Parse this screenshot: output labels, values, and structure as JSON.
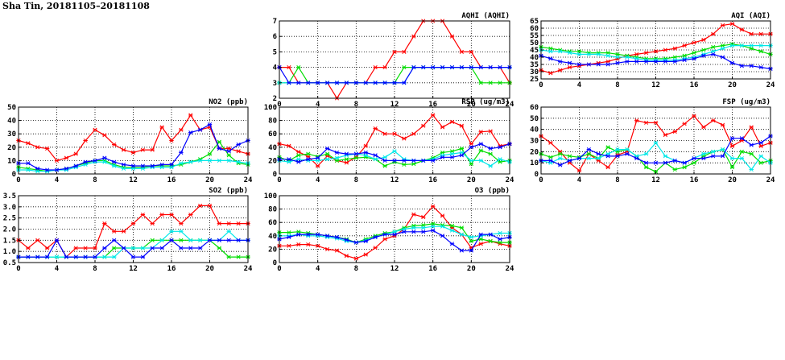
{
  "header": {
    "title": "Sha Tin, 20181105–20181108"
  },
  "colors": {
    "red": "#ff0000",
    "green": "#00dd00",
    "cyan": "#00e8e8",
    "blue": "#0000ff",
    "grid": "#000000"
  },
  "chart_data": [
    {
      "id": "aqhi",
      "type": "line",
      "title": "AQHI (AQHI)",
      "x": [
        0,
        1,
        2,
        3,
        4,
        5,
        6,
        7,
        8,
        9,
        10,
        11,
        12,
        13,
        14,
        15,
        16,
        17,
        18,
        19,
        20,
        21,
        22,
        23,
        24
      ],
      "xlim": [
        0,
        24
      ],
      "xticks": [
        0,
        4,
        8,
        12,
        16,
        20,
        24
      ],
      "ylim": [
        2,
        7
      ],
      "yticks": [
        2,
        3,
        4,
        5,
        6,
        7
      ],
      "series": [
        {
          "color": "red",
          "values": [
            4,
            4,
            3,
            3,
            3,
            3,
            2,
            3,
            3,
            3,
            4,
            4,
            5,
            5,
            6,
            7,
            7,
            7,
            6,
            5,
            5,
            4,
            4,
            4,
            3
          ]
        },
        {
          "color": "green",
          "values": [
            3,
            3,
            4,
            3,
            3,
            3,
            3,
            3,
            3,
            3,
            3,
            3,
            3,
            4,
            4,
            4,
            4,
            4,
            4,
            4,
            4,
            3,
            3,
            3,
            3
          ]
        },
        {
          "color": "cyan",
          "values": [
            3,
            3,
            3,
            3,
            3,
            3,
            3,
            3,
            3,
            3,
            3,
            3,
            3,
            3,
            4,
            4,
            4,
            4,
            4,
            4,
            4,
            4,
            4,
            4,
            4
          ]
        },
        {
          "color": "blue",
          "values": [
            4,
            3,
            3,
            3,
            3,
            3,
            3,
            3,
            3,
            3,
            3,
            3,
            3,
            3,
            4,
            4,
            4,
            4,
            4,
            4,
            4,
            4,
            4,
            4,
            4
          ]
        }
      ]
    },
    {
      "id": "aqi",
      "type": "line",
      "title": "AQI (AQI)",
      "x": [
        0,
        1,
        2,
        3,
        4,
        5,
        6,
        7,
        8,
        9,
        10,
        11,
        12,
        13,
        14,
        15,
        16,
        17,
        18,
        19,
        20,
        21,
        22,
        23,
        24
      ],
      "xlim": [
        0,
        24
      ],
      "xticks": [
        0,
        4,
        8,
        12,
        16,
        20,
        24
      ],
      "ylim": [
        25,
        65
      ],
      "yticks": [
        25,
        30,
        35,
        40,
        45,
        50,
        55,
        60,
        65
      ],
      "series": [
        {
          "color": "red",
          "values": [
            31,
            29,
            31,
            33,
            34,
            35,
            36,
            37,
            39,
            41,
            42,
            43,
            44,
            45,
            46,
            48,
            50,
            52,
            56,
            62,
            63,
            59,
            56,
            56,
            56
          ]
        },
        {
          "color": "green",
          "values": [
            47,
            46,
            45,
            44,
            44,
            43,
            43,
            43,
            42,
            41,
            40,
            39,
            39,
            39,
            40,
            41,
            43,
            45,
            47,
            48,
            49,
            48,
            46,
            44,
            42
          ]
        },
        {
          "color": "cyan",
          "values": [
            45,
            44,
            44,
            43,
            42,
            42,
            42,
            41,
            40,
            40,
            39,
            38,
            38,
            38,
            38,
            39,
            40,
            42,
            44,
            46,
            48,
            48,
            48,
            48,
            48
          ]
        },
        {
          "color": "blue",
          "values": [
            41,
            39,
            37,
            36,
            35,
            35,
            35,
            35,
            36,
            37,
            37,
            37,
            37,
            37,
            37,
            38,
            39,
            41,
            42,
            40,
            36,
            34,
            34,
            33,
            32
          ]
        }
      ]
    },
    {
      "id": "no2",
      "type": "line",
      "title": "NO2 (ppb)",
      "x": [
        0,
        1,
        2,
        3,
        4,
        5,
        6,
        7,
        8,
        9,
        10,
        11,
        12,
        13,
        14,
        15,
        16,
        17,
        18,
        19,
        20,
        21,
        22,
        23,
        24
      ],
      "xlim": [
        0,
        24
      ],
      "xticks": [
        0,
        4,
        8,
        12,
        16,
        20,
        24
      ],
      "ylim": [
        0,
        50
      ],
      "yticks": [
        0,
        10,
        20,
        30,
        40,
        50
      ],
      "series": [
        {
          "color": "red",
          "values": [
            25,
            23,
            20,
            19,
            10,
            12,
            15,
            25,
            33,
            29,
            22,
            18,
            16,
            18,
            18,
            35,
            25,
            33,
            44,
            33,
            35,
            19,
            19,
            17,
            15
          ]
        },
        {
          "color": "green",
          "values": [
            5,
            4,
            3,
            2,
            3,
            4,
            6,
            8,
            10,
            10,
            7,
            5,
            5,
            5,
            6,
            6,
            6,
            7,
            9,
            11,
            15,
            24,
            14,
            8,
            7
          ]
        },
        {
          "color": "cyan",
          "values": [
            3,
            3,
            2,
            2,
            3,
            3,
            5,
            7,
            9,
            9,
            6,
            4,
            4,
            4,
            5,
            5,
            5,
            8,
            9,
            10,
            10,
            10,
            10,
            9,
            8
          ]
        },
        {
          "color": "blue",
          "values": [
            8,
            8,
            4,
            3,
            3,
            4,
            6,
            9,
            10,
            12,
            9,
            7,
            6,
            6,
            6,
            7,
            7,
            16,
            31,
            33,
            37,
            19,
            17,
            22,
            25
          ]
        }
      ]
    },
    {
      "id": "rsp",
      "type": "line",
      "title": "RSP (ug/m3)",
      "x": [
        0,
        1,
        2,
        3,
        4,
        5,
        6,
        7,
        8,
        9,
        10,
        11,
        12,
        13,
        14,
        15,
        16,
        17,
        18,
        19,
        20,
        21,
        22,
        23,
        24
      ],
      "xlim": [
        0,
        24
      ],
      "xticks": [
        0,
        4,
        8,
        12,
        16,
        20,
        24
      ],
      "ylim": [
        0,
        100
      ],
      "yticks": [
        0,
        20,
        40,
        60,
        80,
        100
      ],
      "series": [
        {
          "color": "red",
          "values": [
            45,
            42,
            33,
            26,
            12,
            27,
            20,
            17,
            25,
            42,
            68,
            60,
            60,
            53,
            60,
            72,
            88,
            70,
            78,
            72,
            45,
            63,
            64,
            42,
            45
          ]
        },
        {
          "color": "green",
          "values": [
            25,
            20,
            28,
            30,
            26,
            30,
            20,
            22,
            24,
            25,
            22,
            12,
            18,
            14,
            15,
            20,
            24,
            32,
            34,
            38,
            15,
            35,
            30,
            18,
            20
          ]
        },
        {
          "color": "cyan",
          "values": [
            20,
            18,
            22,
            20,
            20,
            22,
            24,
            28,
            30,
            28,
            22,
            25,
            34,
            22,
            20,
            20,
            22,
            28,
            30,
            32,
            20,
            20,
            12,
            22,
            18
          ]
        },
        {
          "color": "blue",
          "values": [
            22,
            22,
            18,
            22,
            24,
            38,
            32,
            30,
            30,
            32,
            28,
            20,
            20,
            20,
            20,
            20,
            20,
            25,
            25,
            28,
            40,
            45,
            38,
            40,
            45
          ]
        }
      ]
    },
    {
      "id": "fsp",
      "type": "line",
      "title": "FSP (ug/m3)",
      "x": [
        0,
        1,
        2,
        3,
        4,
        5,
        6,
        7,
        8,
        9,
        10,
        11,
        12,
        13,
        14,
        15,
        16,
        17,
        18,
        19,
        20,
        21,
        22,
        23,
        24
      ],
      "xlim": [
        0,
        24
      ],
      "xticks": [
        0,
        4,
        8,
        12,
        16,
        20,
        24
      ],
      "ylim": [
        0,
        60
      ],
      "yticks": [
        0,
        10,
        20,
        30,
        40,
        50,
        60
      ],
      "series": [
        {
          "color": "red",
          "values": [
            34,
            28,
            20,
            10,
            3,
            18,
            12,
            6,
            17,
            20,
            48,
            46,
            46,
            35,
            38,
            45,
            52,
            42,
            48,
            44,
            25,
            30,
            42,
            25,
            28
          ]
        },
        {
          "color": "green",
          "values": [
            18,
            15,
            18,
            16,
            15,
            18,
            14,
            24,
            20,
            22,
            16,
            6,
            2,
            10,
            4,
            6,
            10,
            16,
            20,
            22,
            6,
            20,
            18,
            10,
            12
          ]
        },
        {
          "color": "cyan",
          "values": [
            12,
            10,
            14,
            12,
            14,
            14,
            14,
            18,
            22,
            22,
            16,
            18,
            28,
            16,
            12,
            10,
            14,
            18,
            20,
            22,
            14,
            14,
            4,
            16,
            10
          ]
        },
        {
          "color": "blue",
          "values": [
            12,
            12,
            8,
            12,
            14,
            22,
            18,
            16,
            16,
            18,
            14,
            10,
            10,
            10,
            12,
            10,
            14,
            14,
            16,
            16,
            32,
            32,
            26,
            28,
            34
          ]
        }
      ]
    },
    {
      "id": "so2",
      "type": "line",
      "title": "SO2 (ppb)",
      "x": [
        0,
        1,
        2,
        3,
        4,
        5,
        6,
        7,
        8,
        9,
        10,
        11,
        12,
        13,
        14,
        15,
        16,
        17,
        18,
        19,
        20,
        21,
        22,
        23,
        24
      ],
      "xlim": [
        0,
        24
      ],
      "xticks": [
        0,
        4,
        8,
        12,
        16,
        20,
        24
      ],
      "ylim": [
        0.5,
        3.5
      ],
      "yticks": [
        0.5,
        1.0,
        1.5,
        2.0,
        2.5,
        3.0,
        3.5
      ],
      "series": [
        {
          "color": "red",
          "values": [
            1.5,
            1.15,
            1.5,
            1.15,
            1.5,
            0.75,
            1.15,
            1.15,
            1.15,
            2.25,
            1.9,
            1.9,
            2.25,
            2.65,
            2.25,
            2.65,
            2.65,
            2.25,
            2.65,
            3.05,
            3.05,
            2.25,
            2.25,
            2.25,
            2.25
          ]
        },
        {
          "color": "green",
          "values": [
            0.75,
            0.75,
            0.75,
            0.75,
            0.75,
            0.75,
            0.75,
            0.75,
            0.75,
            0.75,
            1.15,
            1.15,
            1.15,
            1.15,
            1.5,
            1.5,
            1.5,
            1.5,
            1.5,
            1.5,
            1.5,
            1.15,
            0.75,
            0.75,
            0.75
          ]
        },
        {
          "color": "cyan",
          "values": [
            0.75,
            0.75,
            0.75,
            0.75,
            0.75,
            0.75,
            0.75,
            0.75,
            0.75,
            0.75,
            0.75,
            1.15,
            1.15,
            1.15,
            1.15,
            1.5,
            1.9,
            1.9,
            1.5,
            1.5,
            1.5,
            1.5,
            1.9,
            1.5,
            1.5
          ]
        },
        {
          "color": "blue",
          "values": [
            0.75,
            0.75,
            0.75,
            0.75,
            1.5,
            0.75,
            0.75,
            0.75,
            0.75,
            1.15,
            1.5,
            1.15,
            0.75,
            0.75,
            1.15,
            1.15,
            1.5,
            1.15,
            1.15,
            1.15,
            1.5,
            1.5,
            1.5,
            1.5,
            1.5
          ]
        }
      ]
    },
    {
      "id": "o3",
      "type": "line",
      "title": "O3 (ppb)",
      "x": [
        0,
        1,
        2,
        3,
        4,
        5,
        6,
        7,
        8,
        9,
        10,
        11,
        12,
        13,
        14,
        15,
        16,
        17,
        18,
        19,
        20,
        21,
        22,
        23,
        24
      ],
      "xlim": [
        0,
        24
      ],
      "xticks": [
        0,
        4,
        8,
        12,
        16,
        20,
        24
      ],
      "ylim": [
        0,
        100
      ],
      "yticks": [
        0,
        20,
        40,
        60,
        80,
        100
      ],
      "series": [
        {
          "color": "red",
          "values": [
            25,
            25,
            27,
            27,
            25,
            20,
            18,
            10,
            6,
            12,
            22,
            35,
            40,
            50,
            72,
            68,
            84,
            70,
            52,
            42,
            22,
            28,
            32,
            28,
            25
          ]
        },
        {
          "color": "green",
          "values": [
            45,
            45,
            46,
            44,
            42,
            40,
            38,
            35,
            30,
            35,
            40,
            44,
            46,
            52,
            55,
            56,
            58,
            56,
            55,
            52,
            32,
            35,
            32,
            30,
            30
          ]
        },
        {
          "color": "cyan",
          "values": [
            40,
            40,
            42,
            40,
            40,
            38,
            36,
            32,
            30,
            33,
            38,
            42,
            46,
            50,
            52,
            52,
            54,
            54,
            48,
            42,
            38,
            40,
            42,
            44,
            44
          ]
        },
        {
          "color": "blue",
          "values": [
            35,
            38,
            42,
            42,
            42,
            40,
            38,
            34,
            30,
            32,
            38,
            42,
            42,
            46,
            46,
            46,
            48,
            40,
            28,
            18,
            18,
            42,
            42,
            35,
            38
          ]
        }
      ]
    }
  ]
}
